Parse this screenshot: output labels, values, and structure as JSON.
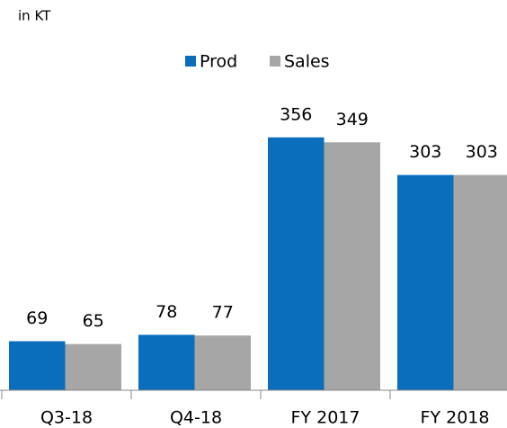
{
  "chart_data": {
    "type": "bar",
    "subtitle": "in KT",
    "categories": [
      "Q3-18",
      "Q4-18",
      "FY 2017",
      "FY 2018"
    ],
    "series": [
      {
        "name": "Prod",
        "color": "#0a6ebd",
        "values": [
          69,
          78,
          356,
          303
        ]
      },
      {
        "name": "Sales",
        "color": "#a6a6a6",
        "values": [
          65,
          77,
          349,
          303
        ]
      }
    ],
    "ylim": [
      0,
      400
    ],
    "legend": "top"
  }
}
